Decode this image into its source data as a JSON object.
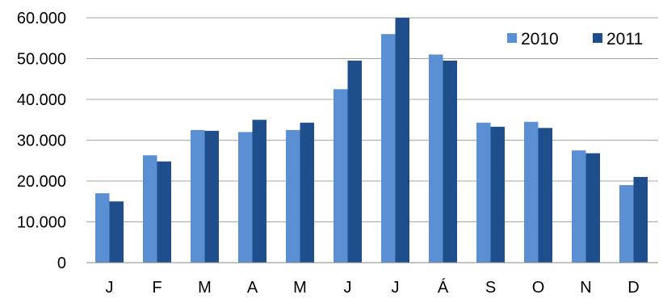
{
  "chart_data": {
    "type": "bar",
    "categories": [
      "J",
      "F",
      "M",
      "A",
      "M",
      "J",
      "J",
      "Á",
      "S",
      "O",
      "N",
      "D"
    ],
    "series": [
      {
        "name": "2010",
        "color": "#5B8FD4",
        "values": [
          17000,
          26300,
          32500,
          32000,
          32500,
          42500,
          56000,
          51000,
          34300,
          34500,
          27500,
          19000
        ]
      },
      {
        "name": "2011",
        "color": "#1F4E8C",
        "values": [
          15000,
          24800,
          32300,
          35000,
          34300,
          49500,
          60000,
          49500,
          33300,
          33000,
          26800,
          21000
        ]
      }
    ],
    "ylim": [
      0,
      60000
    ],
    "yticks": [
      0,
      10000,
      20000,
      30000,
      40000,
      50000,
      60000
    ],
    "ytick_labels": [
      "0",
      "10.000",
      "20.000",
      "30.000",
      "40.000",
      "50.000",
      "60.000"
    ],
    "grid": true,
    "legend_position": "top-right"
  }
}
